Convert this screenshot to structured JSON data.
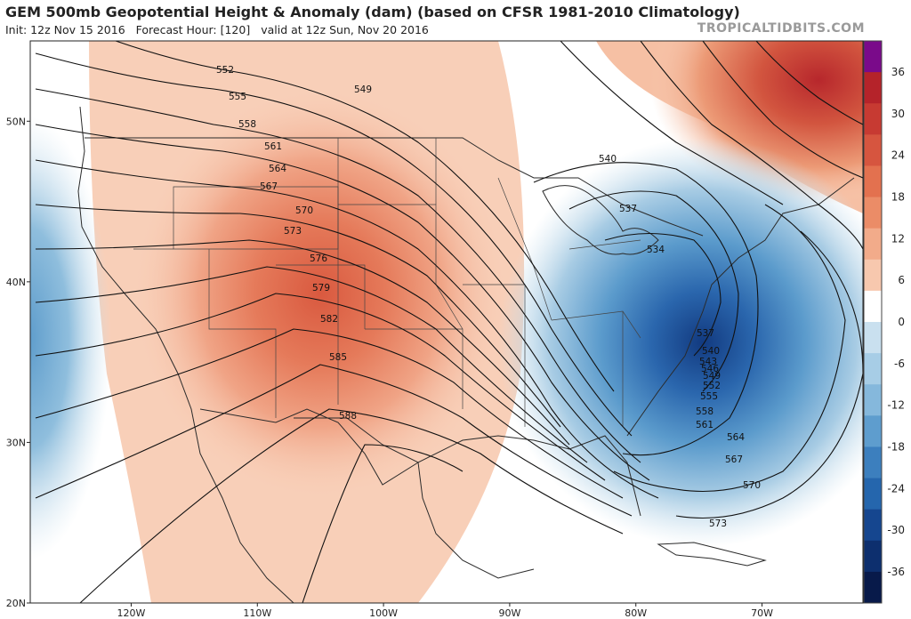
{
  "header": {
    "title": "GEM 500mb Geopotential Height & Anomaly (dam) (based on CFSR 1981-2010 Climatology)",
    "init": "Init: 12z Nov 15 2016",
    "forecast_hour": "Forecast Hour: [120]",
    "valid": "valid at 12z Sun, Nov 20 2016",
    "watermark": "TROPICALTIDBITS.COM"
  },
  "map": {
    "projection": "lat-lon",
    "lon_range": [
      -128,
      -62
    ],
    "lat_range": [
      20,
      55
    ],
    "lat_ticks": [
      {
        "value": 50,
        "label": "50N"
      },
      {
        "value": 40,
        "label": "40N"
      },
      {
        "value": 30,
        "label": "30N"
      },
      {
        "value": 20,
        "label": "20N"
      }
    ],
    "lon_ticks": [
      {
        "value": -120,
        "label": "120W"
      },
      {
        "value": -110,
        "label": "110W"
      },
      {
        "value": -100,
        "label": "100W"
      },
      {
        "value": -90,
        "label": "90W"
      },
      {
        "value": -80,
        "label": "80W"
      },
      {
        "value": -70,
        "label": "70W"
      }
    ],
    "contour_labels": [
      "552",
      "549",
      "555",
      "558",
      "561",
      "564",
      "567",
      "570",
      "573",
      "576",
      "579",
      "582",
      "585",
      "588",
      "540",
      "537",
      "534",
      "537",
      "540",
      "543",
      "546",
      "549",
      "552",
      "555",
      "558",
      "561",
      "564",
      "567",
      "570",
      "573",
      "576",
      "579",
      "582",
      "585"
    ],
    "features": {
      "ridge": {
        "center_lon": -103,
        "center_lat": 37,
        "anomaly_dam": 18
      },
      "trough": {
        "center_lon": -78,
        "center_lat": 40,
        "anomaly_dam": -30
      },
      "west_trough": {
        "center_lon": -128,
        "center_lat": 38,
        "anomaly_dam": -12
      },
      "ne_ridge": {
        "center_lon": -66,
        "center_lat": 53,
        "anomaly_dam": 30
      }
    }
  },
  "colorbar": {
    "labels": [
      "36",
      "30",
      "24",
      "18",
      "12",
      "6",
      "0",
      "-6",
      "-12",
      "-18",
      "-24",
      "-30",
      "-36"
    ],
    "colors": [
      "#7a0a8a",
      "#b5232a",
      "#c73a32",
      "#d6553f",
      "#e3714f",
      "#eb8c67",
      "#f2ab8a",
      "#f7c8ae",
      "#ffffff",
      "#c9e0ef",
      "#a7cde6",
      "#85b8dc",
      "#5e9dce",
      "#3c7fbe",
      "#2566ad",
      "#15468f",
      "#0d2f6e",
      "#081a4a"
    ]
  }
}
